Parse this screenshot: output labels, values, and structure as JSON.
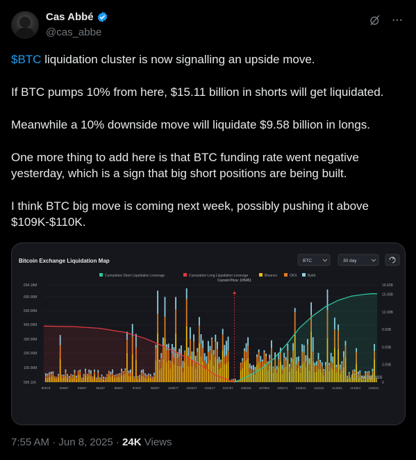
{
  "author": {
    "name": "Cas Abbé",
    "handle": "@cas_abbe"
  },
  "tweet": {
    "cashtag": "$BTC",
    "line1_rest": " liquidation cluster is now signalling an upside move.",
    "p2": "If BTC pumps 10% from here, $15.11 billion in shorts will get liquidated.",
    "p3": "Meanwhile a 10% downside move will liquidate $9.58 billion in longs.",
    "p4": "One more thing to add here is that BTC funding rate went negative yesterday, which is a sign that big short positions are being built.",
    "p5": "I think BTC big move is coming next week, possibly pushing it above $109K-$110K."
  },
  "footer": {
    "time_date": "7:55 AM · Jun 8, 2025 · ",
    "views_count": "24K",
    "views_label": " Views"
  },
  "icons": {
    "verified": "verified-badge-icon",
    "grok": "grok-icon",
    "more": "more-icon",
    "refresh": "refresh-icon"
  },
  "colors": {
    "short_line": "#2ec4a5",
    "long_line": "#e0393e",
    "binance": "#f0b90b",
    "okx": "#e07a1f",
    "bybit": "#8fcfe0",
    "cashtag": "#1d9bf0"
  },
  "chart_data": {
    "type": "bar",
    "title": "Bitcoin Exchange Liquidation Map",
    "controls": {
      "asset": "BTC",
      "period": "30 day"
    },
    "legend": [
      "Cumulative Short Liquidation Leverage",
      "Cumulative Long Liquidation Leverage",
      "Binance",
      "OKX",
      "Bybit"
    ],
    "current_price_label": "Current Price: 105451",
    "current_price": 105451,
    "watermark": "coinglass",
    "left_ticks": [
      "694.18M",
      "600.00M",
      "500.00M",
      "400.00M",
      "300.00M",
      "200.00M",
      "100.00M",
      "590.11K"
    ],
    "right_ticks": [
      "16.62B",
      "15.00B",
      "12.00B",
      "9.00B",
      "6.00B",
      "3.00B",
      "0"
    ],
    "x_ticks": [
      "90676",
      "92697",
      "93827",
      "95197",
      "96567",
      "97937",
      "99307",
      "100677",
      "102047",
      "103417",
      "104787",
      "106431",
      "107801",
      "109171",
      "110541",
      "111911",
      "113281",
      "114651",
      "116021"
    ],
    "xlim": [
      90676,
      116500
    ],
    "ylim_left": [
      0,
      694.18
    ],
    "ylim_right": [
      0,
      16.62
    ],
    "series": [
      {
        "name": "Cumulative Long Liquidation Leverage",
        "unit": "B",
        "x": [
          90676,
          93000,
          95000,
          97000,
          98500,
          100000,
          101500,
          103000,
          104000,
          105451
        ],
        "values": [
          9.58,
          9.5,
          9.2,
          8.5,
          7.5,
          6.1,
          4.5,
          2.7,
          1.2,
          0
        ]
      },
      {
        "name": "Cumulative Short Liquidation Leverage",
        "unit": "B",
        "x": [
          105451,
          106500,
          107500,
          108500,
          109500,
          110500,
          111500,
          112500,
          113500,
          114500,
          115500,
          116021,
          116500
        ],
        "values": [
          0,
          1.0,
          2.3,
          4.0,
          6.5,
          9.3,
          11.3,
          12.9,
          14.0,
          14.7,
          15.0,
          15.11,
          15.11
        ]
      }
    ]
  }
}
